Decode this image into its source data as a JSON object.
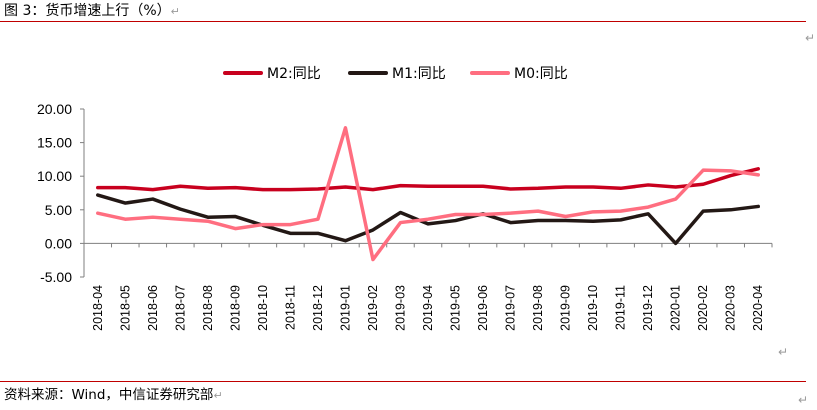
{
  "figure": {
    "title": "图 3：货币增速上行（%）",
    "source": "资料来源：Wind，中信证券研究部"
  },
  "chart_data": {
    "type": "line",
    "title": "",
    "xlabel": "",
    "ylabel": "",
    "ylim": [
      -5,
      20
    ],
    "yticks": [
      "20.00",
      "15.00",
      "10.00",
      "5.00",
      "0.00",
      "-5.00"
    ],
    "grid": false,
    "legend_position": "top",
    "categories": [
      "2018-04",
      "2018-05",
      "2018-06",
      "2018-07",
      "2018-08",
      "2018-09",
      "2018-10",
      "2018-11",
      "2018-12",
      "2019-01",
      "2019-02",
      "2019-03",
      "2019-04",
      "2019-05",
      "2019-06",
      "2019-07",
      "2019-08",
      "2019-09",
      "2019-10",
      "2019-11",
      "2019-12",
      "2020-01",
      "2020-02",
      "2020-03",
      "2020-04"
    ],
    "series": [
      {
        "name": "M2:同比",
        "color": "#c8001e",
        "values": [
          8.3,
          8.3,
          8.0,
          8.5,
          8.2,
          8.3,
          8.0,
          8.0,
          8.1,
          8.4,
          8.0,
          8.6,
          8.5,
          8.5,
          8.5,
          8.1,
          8.2,
          8.4,
          8.4,
          8.2,
          8.7,
          8.4,
          8.8,
          10.1,
          11.1
        ]
      },
      {
        "name": "M1:同比",
        "color": "#231815",
        "values": [
          7.2,
          6.0,
          6.6,
          5.1,
          3.9,
          4.0,
          2.7,
          1.5,
          1.5,
          0.4,
          2.0,
          4.6,
          2.9,
          3.4,
          4.4,
          3.1,
          3.4,
          3.4,
          3.3,
          3.5,
          4.4,
          0.0,
          4.8,
          5.0,
          5.5
        ]
      },
      {
        "name": "M0:同比",
        "color": "#ff6e80",
        "values": [
          4.5,
          3.6,
          3.9,
          3.6,
          3.3,
          2.2,
          2.8,
          2.8,
          3.6,
          17.2,
          -2.4,
          3.1,
          3.6,
          4.3,
          4.3,
          4.5,
          4.8,
          4.0,
          4.7,
          4.8,
          5.4,
          6.6,
          10.9,
          10.8,
          10.2
        ]
      }
    ]
  }
}
